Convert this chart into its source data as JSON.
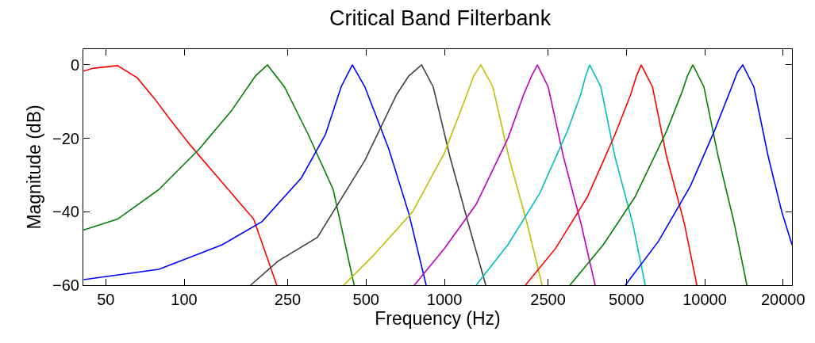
{
  "chart_data": {
    "type": "line",
    "title": "Critical Band Filterbank",
    "xlabel": "Frequency (Hz)",
    "ylabel": "Magnitude (dB)",
    "log": "x",
    "grid": false,
    "marker": "none",
    "line_style": "solid",
    "xlim": [
      41,
      21640
    ],
    "xticks": [
      50,
      100,
      250,
      500,
      1000,
      2500,
      5000,
      10000,
      20000
    ],
    "ylim": [
      -60,
      4.3
    ],
    "yticks": [
      -60,
      -40,
      -20,
      0
    ],
    "series": [
      {
        "color": "#ff0000",
        "x": [
          41,
          44.9,
          55.5,
          66,
          76.6,
          88.7,
          106,
          140,
          185,
          227
        ],
        "values": [
          -1.7,
          -0.9,
          -0.2,
          -3.5,
          -9,
          -15,
          -22,
          -32,
          -42,
          -60
        ]
      },
      {
        "color": "#008000",
        "x": [
          41,
          55.5,
          79.9,
          114,
          152,
          188,
          209,
          243,
          300,
          374,
          450
        ],
        "values": [
          -45,
          -42,
          -34,
          -23,
          -12.5,
          -3,
          0,
          -6,
          -19,
          -34,
          -60
        ]
      },
      {
        "color": "#0000ff",
        "x": [
          41.1,
          79.9,
          140,
          199,
          282,
          349,
          401,
          443,
          495,
          612,
          730,
          851
        ],
        "values": [
          -58.5,
          -55.7,
          -49,
          -42.7,
          -30.8,
          -19,
          -6,
          0,
          -6,
          -23,
          -40.5,
          -60
        ]
      },
      {
        "color": "#404040",
        "x": [
          180,
          229,
          325,
          495,
          656,
          730,
          817,
          906,
          1050,
          1233,
          1442
        ],
        "values": [
          -60,
          -53.5,
          -47,
          -26,
          -8,
          -3,
          0,
          -6,
          -25,
          -43,
          -60
        ]
      },
      {
        "color": "#bfbf00",
        "x": [
          410,
          532,
          755,
          1000,
          1191,
          1296,
          1380,
          1535,
          1766,
          2075,
          2372
        ],
        "values": [
          -60,
          -52,
          -40,
          -24,
          -10,
          -3,
          0,
          -6,
          -25,
          -43,
          -60
        ]
      },
      {
        "color": "#bf00bf",
        "x": [
          766,
          1000,
          1324,
          1754,
          2018,
          2163,
          2275,
          2505,
          2865,
          3342,
          3793
        ],
        "values": [
          -60,
          -50,
          -38,
          -20,
          -8,
          -3,
          0,
          -6,
          -25,
          -43,
          -60
        ]
      },
      {
        "color": "#00bfbf",
        "x": [
          1324,
          1754,
          2323,
          2970,
          3342,
          3490,
          3616,
          3990,
          4520,
          5280,
          5910
        ],
        "values": [
          -60,
          -49,
          -35,
          -18,
          -8,
          -3,
          0,
          -6,
          -25,
          -43,
          -60
        ]
      },
      {
        "color": "#ff0000",
        "x": [
          2047,
          2673,
          3540,
          4520,
          5200,
          5470,
          5700,
          6300,
          7140,
          8340,
          9330
        ],
        "values": [
          -60,
          -50,
          -36,
          -19,
          -8,
          -3,
          0,
          -6,
          -25,
          -43,
          -60
        ]
      },
      {
        "color": "#008000",
        "x": [
          3035,
          4075,
          5395,
          7140,
          8220,
          8580,
          9000,
          9930,
          11270,
          12970,
          14520
        ],
        "values": [
          -60,
          -49,
          -36,
          -18,
          -7,
          -3,
          0,
          -6,
          -25,
          -43,
          -60
        ]
      },
      {
        "color": "#0000ff",
        "x": [
          4955,
          6650,
          8810,
          10890,
          12700,
          13350,
          14000,
          15450,
          17540,
          19770,
          21640
        ],
        "values": [
          -60,
          -48,
          -33,
          -18,
          -6,
          -2,
          0,
          -6,
          -25,
          -40,
          -49
        ]
      }
    ]
  }
}
